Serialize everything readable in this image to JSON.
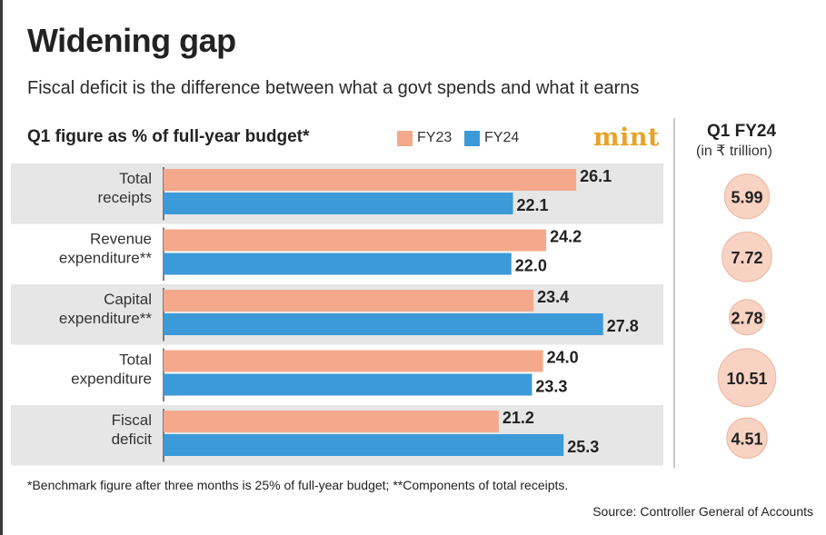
{
  "header": {
    "title": "Widening gap",
    "subtitle": "Fiscal deficit is the difference between what a govt spends and what it earns",
    "chart_label": "Q1 figure as % of full-year budget*",
    "logo": "mint",
    "right_header": "Q1 FY24",
    "right_subheader": "(in ₹ trillion)"
  },
  "colors": {
    "fy23": "#f5a98c",
    "fy24": "#3d9ad8",
    "band": "#e6e6e6",
    "bubble": "#f8d2c2"
  },
  "chart_data": {
    "type": "bar",
    "orientation": "horizontal",
    "categories": [
      [
        "Total",
        "receipts"
      ],
      [
        "Revenue",
        "expenditure**"
      ],
      [
        "Capital",
        "expenditure**"
      ],
      [
        "Total",
        "expenditure"
      ],
      [
        "Fiscal",
        "deficit"
      ]
    ],
    "series": [
      {
        "name": "FY23",
        "color": "#f5a98c",
        "values": [
          26.1,
          24.2,
          23.4,
          24.0,
          21.2
        ],
        "labels": [
          "26.1",
          "24.2",
          "23.4",
          "24.0",
          "21.2"
        ]
      },
      {
        "name": "FY24",
        "color": "#3d9ad8",
        "values": [
          22.1,
          22.0,
          27.8,
          23.3,
          25.3
        ],
        "labels": [
          "22.1",
          "22.0",
          "27.8",
          "23.3",
          "25.3"
        ]
      }
    ],
    "q1_fy24_trillion": [
      "5.99",
      "7.72",
      "2.78",
      "10.51",
      "4.51"
    ],
    "xlim": [
      0,
      30
    ],
    "legend": "top",
    "grid": false
  },
  "footer": {
    "footnote": "*Benchmark figure after three months is 25% of full-year budget; **Components of total receipts.",
    "source": "Source: Controller General of Accounts"
  }
}
